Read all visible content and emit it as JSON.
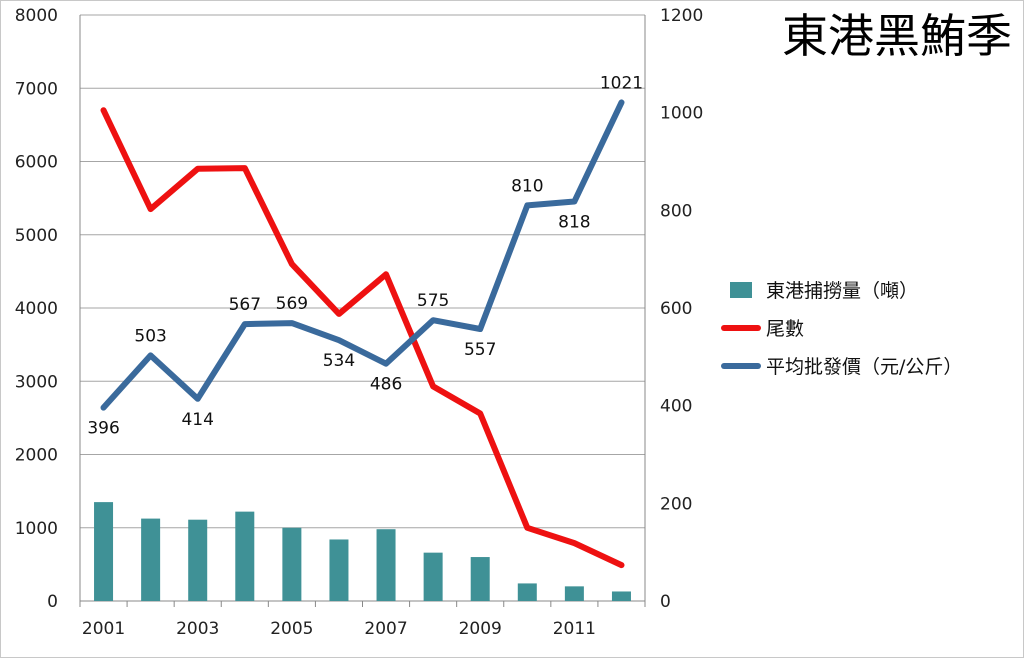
{
  "chart_data": {
    "type": "bar+line",
    "title": "東港黑鮪季",
    "x": [
      2001,
      2002,
      2003,
      2004,
      2005,
      2006,
      2007,
      2008,
      2009,
      2010,
      2011,
      2012
    ],
    "x_tick_labels": [
      "2001",
      "2003",
      "2005",
      "2007",
      "2009",
      "2011"
    ],
    "y_left": {
      "ylim": [
        0,
        8000
      ],
      "ticks": [
        "0",
        "1000",
        "2000",
        "3000",
        "4000",
        "5000",
        "6000",
        "7000",
        "8000"
      ]
    },
    "y_right": {
      "ylim": [
        0,
        1200
      ],
      "ticks": [
        "0",
        "200",
        "400",
        "600",
        "800",
        "1000",
        "1200"
      ]
    },
    "grid": true,
    "legend_position": "right",
    "series": [
      {
        "name": "東港捕撈量（噸）",
        "type": "bar",
        "axis": "left",
        "color": "#3f9196",
        "values": [
          1350,
          1125,
          1110,
          1220,
          1000,
          840,
          980,
          660,
          600,
          240,
          200,
          130
        ]
      },
      {
        "name": "尾數",
        "type": "line",
        "axis": "left",
        "color": "#ee1111",
        "values": [
          6700,
          5350,
          5900,
          5910,
          4600,
          3920,
          4460,
          2930,
          2560,
          1000,
          790,
          490
        ]
      },
      {
        "name": "平均批發價（元/公斤）",
        "type": "line",
        "axis": "right",
        "color": "#3a6a9c",
        "values": [
          396,
          503,
          414,
          567,
          569,
          534,
          486,
          575,
          557,
          810,
          818,
          1021
        ],
        "data_labels": [
          "396",
          "503",
          "414",
          "567",
          "569",
          "534",
          "486",
          "575",
          "557",
          "810",
          "818",
          "1021"
        ]
      }
    ]
  }
}
